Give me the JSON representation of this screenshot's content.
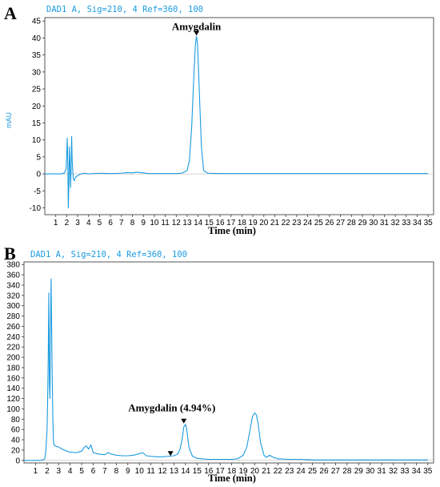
{
  "chart_data": [
    {
      "type": "line",
      "panel_letter": "A",
      "signal_label": "DAD1 A, Sig=210, 4 Ref=360, 100",
      "xlabel": "Time (min)",
      "ylabel": "mAU",
      "xlim": [
        0,
        35.5
      ],
      "ylim": [
        -12,
        46
      ],
      "x_ticks": [
        1,
        2,
        3,
        4,
        5,
        6,
        7,
        8,
        9,
        10,
        11,
        12,
        13,
        14,
        15,
        16,
        17,
        18,
        19,
        20,
        21,
        22,
        23,
        24,
        25,
        26,
        27,
        28,
        29,
        30,
        31,
        32,
        33,
        34,
        35
      ],
      "y_ticks": [
        -10,
        -5,
        0,
        5,
        10,
        15,
        20,
        25,
        30,
        35,
        40,
        45
      ],
      "series": [
        {
          "x": [
            0.0,
            1.5,
            1.8,
            1.95,
            2.0,
            2.05,
            2.1,
            2.15,
            2.2,
            2.25,
            2.3,
            2.35,
            2.4,
            2.45,
            2.5,
            2.6,
            2.7,
            2.8,
            3.0,
            3.3,
            3.6,
            4.0,
            5.0,
            6.0,
            7.0,
            7.5,
            8.0,
            8.4,
            8.7,
            9.0,
            9.5,
            10.0,
            11.0,
            12.0,
            12.5,
            13.0,
            13.2,
            13.4,
            13.6,
            13.75,
            13.85,
            13.95,
            14.1,
            14.3,
            14.5,
            14.8,
            15.0,
            16.0,
            18.0,
            20.0,
            25.0,
            30.0,
            35.0
          ],
          "y": [
            0,
            0,
            0.3,
            1.5,
            6,
            10.5,
            3,
            -10,
            -2,
            8,
            3,
            -4,
            1,
            11,
            4,
            -1.5,
            -2,
            -1,
            -0.5,
            0,
            0.2,
            0,
            0.2,
            0.1,
            0.2,
            0.4,
            0.3,
            0.5,
            0.4,
            0.3,
            0.1,
            0.1,
            0.1,
            0.1,
            0.2,
            1,
            4,
            13,
            28,
            38,
            40.5,
            38,
            25,
            8,
            1,
            0.3,
            0.2,
            0.1,
            0.1,
            0.1,
            0.1,
            0.1,
            0.1
          ]
        }
      ],
      "annotations": [
        {
          "text": "Amygdalin",
          "x": 13.85,
          "y": 40.5
        }
      ]
    },
    {
      "type": "line",
      "panel_letter": "B",
      "signal_label": "DAD1 A, Sig=210, 4 Ref=360, 100",
      "xlabel": "Time (min)",
      "ylabel": "",
      "xlim": [
        0,
        35.5
      ],
      "ylim": [
        -5,
        385
      ],
      "x_ticks": [
        1,
        2,
        3,
        4,
        5,
        6,
        7,
        8,
        9,
        10,
        11,
        12,
        13,
        14,
        15,
        16,
        17,
        18,
        19,
        20,
        21,
        22,
        23,
        24,
        25,
        26,
        27,
        28,
        29,
        30,
        31,
        32,
        33,
        34,
        35
      ],
      "y_ticks": [
        0,
        20,
        40,
        60,
        80,
        100,
        120,
        140,
        160,
        180,
        200,
        220,
        240,
        260,
        280,
        300,
        320,
        340,
        360,
        380
      ],
      "series": [
        {
          "x": [
            0.0,
            1.5,
            1.8,
            1.9,
            2.0,
            2.05,
            2.1,
            2.15,
            2.2,
            2.25,
            2.3,
            2.35,
            2.4,
            2.45,
            2.5,
            2.55,
            2.6,
            2.7,
            2.8,
            3.0,
            3.3,
            3.7,
            4.0,
            4.5,
            5.0,
            5.2,
            5.4,
            5.6,
            5.8,
            6.0,
            6.5,
            7.0,
            7.3,
            7.6,
            8.0,
            8.5,
            9.0,
            9.5,
            10.0,
            10.3,
            10.6,
            11.0,
            11.5,
            12.0,
            12.5,
            13.0,
            13.3,
            13.5,
            13.7,
            13.85,
            14.0,
            14.1,
            14.3,
            14.6,
            15.0,
            15.5,
            16.0,
            17.0,
            18.0,
            18.5,
            19.0,
            19.3,
            19.6,
            19.8,
            20.0,
            20.15,
            20.3,
            20.5,
            20.8,
            21.0,
            21.3,
            21.6,
            22.0,
            23.0,
            24.0,
            25.0,
            26.0,
            28.0,
            30.0,
            32.0,
            35.0
          ],
          "y": [
            0,
            0,
            3,
            20,
            60,
            120,
            200,
            325,
            150,
            120,
            260,
            352,
            250,
            150,
            80,
            40,
            30,
            28,
            27,
            26,
            22,
            18,
            16,
            15,
            18,
            25,
            28,
            22,
            30,
            15,
            12,
            11,
            15,
            12,
            10,
            9,
            9,
            10,
            13,
            15,
            9,
            8,
            7,
            7,
            8,
            9,
            12,
            20,
            40,
            65,
            70,
            60,
            25,
            8,
            4,
            3,
            2,
            2,
            2,
            3,
            10,
            25,
            60,
            85,
            92,
            88,
            70,
            35,
            10,
            6,
            10,
            6,
            3,
            2,
            2,
            1,
            1,
            1,
            1,
            1,
            1
          ]
        }
      ],
      "annotations": [
        {
          "text": "Amygdalin (4.94%)",
          "x": 13.85,
          "y": 70
        }
      ],
      "markers": [
        {
          "x": 12.7,
          "y": 7
        },
        {
          "x": 13.85,
          "y": 70
        }
      ]
    }
  ]
}
